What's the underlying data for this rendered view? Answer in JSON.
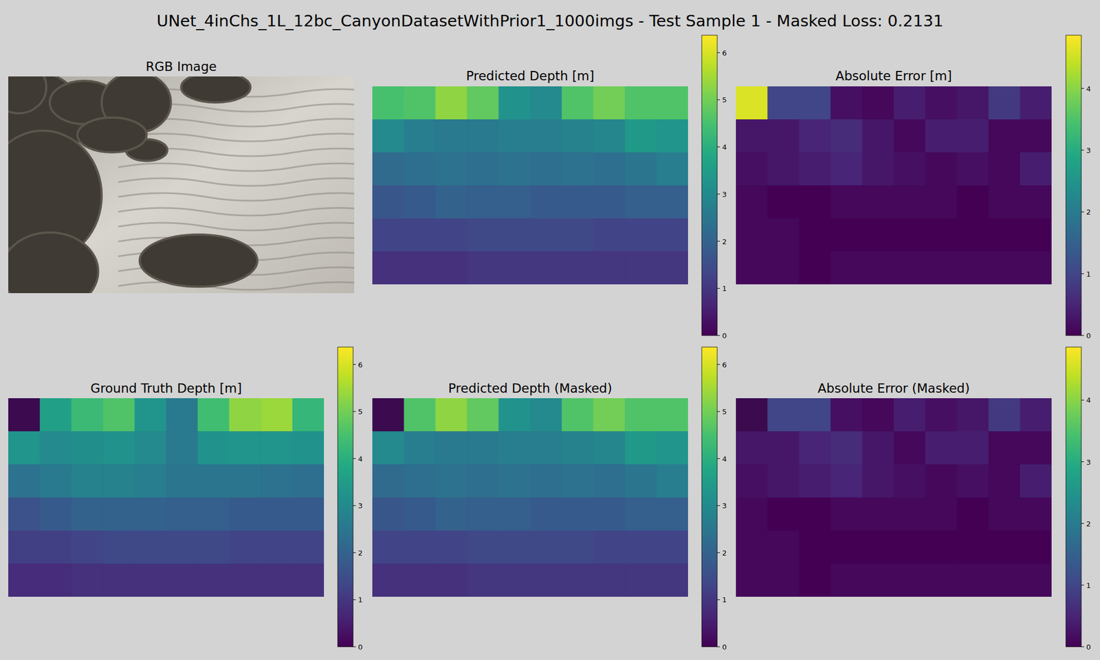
{
  "title": "UNet_4inChs_1L_12bc_CanyonDatasetWithPrior1_1000imgs - Test Sample 1 - Masked Loss: 0.2131",
  "chart_data": [
    {
      "type": "image",
      "title": "RGB Image"
    },
    {
      "type": "heatmap",
      "title": "Predicted Depth [m]",
      "color_range": [
        0,
        6.37
      ],
      "color_ticks": [
        0,
        1,
        2,
        3,
        4,
        5,
        6
      ],
      "cells": [
        [
          4.5,
          4.6,
          5.3,
          4.8,
          3.2,
          3.0,
          4.6,
          5.0,
          4.6,
          4.6
        ],
        [
          3.0,
          2.7,
          2.6,
          2.6,
          2.7,
          2.7,
          2.8,
          2.9,
          3.4,
          3.3
        ],
        [
          2.2,
          2.3,
          2.4,
          2.3,
          2.4,
          2.3,
          2.4,
          2.3,
          2.5,
          2.7
        ],
        [
          1.7,
          1.8,
          2.0,
          1.9,
          1.9,
          1.8,
          1.8,
          1.8,
          1.9,
          1.9
        ],
        [
          1.3,
          1.3,
          1.3,
          1.4,
          1.4,
          1.4,
          1.4,
          1.3,
          1.3,
          1.3
        ],
        [
          0.9,
          0.9,
          0.9,
          1.0,
          1.0,
          1.0,
          1.0,
          1.0,
          1.0,
          1.0
        ]
      ]
    },
    {
      "type": "heatmap",
      "title": "Absolute Error [m]",
      "color_range": [
        0,
        4.86
      ],
      "color_ticks": [
        0,
        1,
        2,
        3,
        4
      ],
      "cells": [
        [
          4.6,
          1.0,
          1.0,
          0.2,
          0.1,
          0.4,
          0.2,
          0.3,
          0.8,
          0.4
        ],
        [
          0.3,
          0.3,
          0.5,
          0.6,
          0.3,
          0.1,
          0.4,
          0.4,
          0.1,
          0.1
        ],
        [
          0.2,
          0.3,
          0.4,
          0.5,
          0.3,
          0.2,
          0.1,
          0.2,
          0.1,
          0.4
        ],
        [
          0.1,
          0.0,
          0.0,
          0.1,
          0.1,
          0.1,
          0.1,
          0.0,
          0.1,
          0.1
        ],
        [
          0.1,
          0.1,
          0.0,
          0.0,
          0.0,
          0.0,
          0.0,
          0.0,
          0.0,
          0.0
        ],
        [
          0.1,
          0.1,
          0.0,
          0.1,
          0.1,
          0.1,
          0.1,
          0.1,
          0.1,
          0.1
        ]
      ]
    },
    {
      "type": "heatmap",
      "title": "Ground Truth Depth [m]",
      "color_range": [
        0,
        6.37
      ],
      "color_ticks": [
        0,
        1,
        2,
        3,
        4,
        5,
        6
      ],
      "cells": [
        [
          null,
          3.6,
          4.3,
          4.6,
          3.3,
          2.6,
          4.4,
          5.3,
          5.4,
          4.2
        ],
        [
          3.3,
          3.0,
          3.1,
          3.2,
          3.0,
          2.6,
          3.2,
          3.3,
          3.3,
          3.2
        ],
        [
          2.4,
          2.6,
          2.8,
          2.8,
          2.7,
          2.5,
          2.5,
          2.5,
          2.4,
          2.3
        ],
        [
          1.6,
          1.8,
          2.0,
          2.0,
          2.0,
          1.9,
          1.9,
          1.8,
          1.8,
          1.8
        ],
        [
          1.2,
          1.2,
          1.3,
          1.4,
          1.4,
          1.4,
          1.4,
          1.3,
          1.3,
          1.3
        ],
        [
          0.8,
          0.8,
          0.9,
          0.9,
          0.9,
          0.9,
          0.9,
          0.9,
          0.9,
          0.9
        ]
      ]
    },
    {
      "type": "heatmap",
      "title": "Predicted Depth (Masked)",
      "color_range": [
        0,
        6.37
      ],
      "color_ticks": [
        0,
        1,
        2,
        3,
        4,
        5,
        6
      ],
      "cells": [
        [
          null,
          4.6,
          5.3,
          4.8,
          3.2,
          3.0,
          4.6,
          5.0,
          4.6,
          4.6
        ],
        [
          3.0,
          2.7,
          2.6,
          2.6,
          2.7,
          2.7,
          2.8,
          2.9,
          3.4,
          3.3
        ],
        [
          2.2,
          2.3,
          2.4,
          2.3,
          2.4,
          2.3,
          2.4,
          2.3,
          2.5,
          2.7
        ],
        [
          1.7,
          1.8,
          2.0,
          1.9,
          1.9,
          1.8,
          1.8,
          1.8,
          1.9,
          1.9
        ],
        [
          1.3,
          1.3,
          1.3,
          1.4,
          1.4,
          1.4,
          1.4,
          1.3,
          1.3,
          1.3
        ],
        [
          0.9,
          0.9,
          0.9,
          1.0,
          1.0,
          1.0,
          1.0,
          1.0,
          1.0,
          1.0
        ]
      ]
    },
    {
      "type": "heatmap",
      "title": "Absolute Error (Masked)",
      "color_range": [
        0,
        4.86
      ],
      "color_ticks": [
        0,
        1,
        2,
        3,
        4
      ],
      "cells": [
        [
          null,
          1.0,
          1.0,
          0.2,
          0.1,
          0.4,
          0.2,
          0.3,
          0.8,
          0.4
        ],
        [
          0.3,
          0.3,
          0.5,
          0.6,
          0.3,
          0.1,
          0.4,
          0.4,
          0.1,
          0.1
        ],
        [
          0.2,
          0.3,
          0.4,
          0.5,
          0.3,
          0.2,
          0.1,
          0.2,
          0.1,
          0.4
        ],
        [
          0.1,
          0.0,
          0.0,
          0.1,
          0.1,
          0.1,
          0.1,
          0.0,
          0.1,
          0.1
        ],
        [
          0.1,
          0.1,
          0.0,
          0.0,
          0.0,
          0.0,
          0.0,
          0.0,
          0.0,
          0.0
        ],
        [
          0.1,
          0.1,
          0.0,
          0.1,
          0.1,
          0.1,
          0.1,
          0.1,
          0.1,
          0.1
        ]
      ]
    }
  ]
}
